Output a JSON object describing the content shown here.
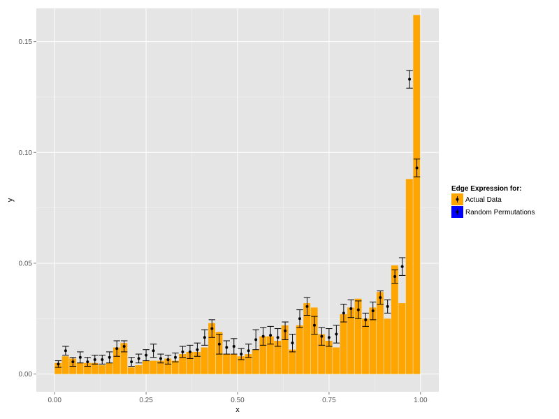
{
  "chart_data": {
    "type": "bar",
    "xlabel": "x",
    "ylabel": "y",
    "xlim": [
      -0.05,
      1.05
    ],
    "ylim": [
      -0.008,
      0.165
    ],
    "x_ticks": [
      0.0,
      0.25,
      0.5,
      0.75,
      1.0
    ],
    "x_tick_labels": [
      "0.00",
      "0.25",
      "0.50",
      "0.75",
      "1.00"
    ],
    "y_ticks": [
      0.0,
      0.05,
      0.1,
      0.15
    ],
    "y_tick_labels": [
      "0.00",
      "0.05",
      "0.10",
      "0.15"
    ],
    "grid": true,
    "bin_width": 0.02,
    "x": [
      0.0,
      0.02,
      0.04,
      0.06,
      0.08,
      0.1,
      0.12,
      0.14,
      0.16,
      0.18,
      0.2,
      0.22,
      0.24,
      0.26,
      0.28,
      0.3,
      0.32,
      0.34,
      0.36,
      0.38,
      0.4,
      0.42,
      0.44,
      0.46,
      0.48,
      0.5,
      0.52,
      0.54,
      0.56,
      0.58,
      0.6,
      0.62,
      0.64,
      0.66,
      0.68,
      0.7,
      0.72,
      0.74,
      0.76,
      0.78,
      0.8,
      0.82,
      0.84,
      0.86,
      0.88,
      0.9,
      0.92,
      0.94,
      0.96,
      0.98
    ],
    "series": [
      {
        "name": "Actual Data",
        "kind": "bar",
        "color": "#FFA500",
        "values": [
          0.005,
          0.008,
          0.007,
          0.005,
          0.005,
          0.005,
          0.004,
          0.005,
          0.012,
          0.014,
          0.003,
          0.004,
          0.006,
          0.006,
          0.006,
          0.007,
          0.006,
          0.009,
          0.01,
          0.01,
          0.012,
          0.023,
          0.019,
          0.009,
          0.009,
          0.008,
          0.009,
          0.011,
          0.017,
          0.017,
          0.015,
          0.022,
          0.011,
          0.022,
          0.032,
          0.03,
          0.018,
          0.015,
          0.012,
          0.027,
          0.03,
          0.034,
          0.025,
          0.03,
          0.037,
          0.025,
          0.049,
          0.032,
          0.088,
          0.162
        ]
      },
      {
        "name": "Random Permutations",
        "kind": "point-errorbar",
        "color": "#000000",
        "values": [
          0.0045,
          0.0105,
          0.0055,
          0.0075,
          0.0055,
          0.0065,
          0.0065,
          0.0075,
          0.0115,
          0.0125,
          0.0055,
          0.007,
          0.0085,
          0.0105,
          0.007,
          0.0065,
          0.0075,
          0.01,
          0.01,
          0.011,
          0.0165,
          0.0205,
          0.0135,
          0.012,
          0.0125,
          0.009,
          0.0105,
          0.0155,
          0.017,
          0.0175,
          0.0165,
          0.0195,
          0.014,
          0.025,
          0.0305,
          0.022,
          0.017,
          0.0165,
          0.018,
          0.0275,
          0.0295,
          0.029,
          0.0245,
          0.0285,
          0.0345,
          0.0305,
          0.044,
          0.0485,
          0.133,
          0.093
        ],
        "err": [
          0.0015,
          0.002,
          0.002,
          0.0025,
          0.002,
          0.002,
          0.002,
          0.0025,
          0.0035,
          0.0025,
          0.002,
          0.002,
          0.0025,
          0.003,
          0.002,
          0.002,
          0.002,
          0.0025,
          0.003,
          0.003,
          0.0035,
          0.004,
          0.0045,
          0.003,
          0.0035,
          0.0025,
          0.003,
          0.0045,
          0.004,
          0.004,
          0.004,
          0.004,
          0.004,
          0.004,
          0.004,
          0.004,
          0.004,
          0.004,
          0.004,
          0.004,
          0.004,
          0.004,
          0.003,
          0.004,
          0.003,
          0.003,
          0.003,
          0.004,
          0.004,
          0.004
        ]
      }
    ],
    "legend": {
      "title": "Edge Expression for:",
      "position": "right",
      "items": [
        {
          "label": "Actual Data",
          "color": "#FFA500"
        },
        {
          "label": "Random Permutations",
          "color": "#0000FF"
        }
      ]
    },
    "colors": {
      "panel": "#E5E5E5",
      "grid_major": "#FFFFFF",
      "grid_minor": "#F2F2F2",
      "bar": "#FFA500",
      "point": "#000000"
    }
  }
}
